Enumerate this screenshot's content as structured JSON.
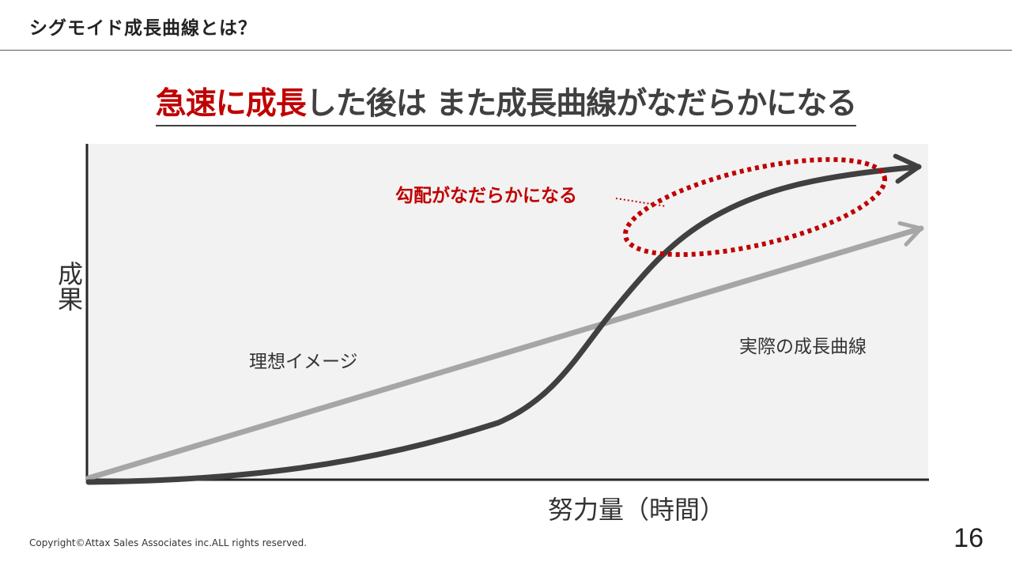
{
  "header": {
    "title": "シグモイド成長曲線とは？"
  },
  "headline": {
    "emphasis": "急速に成長",
    "rest": "した後は また成長曲線がなだらかになる"
  },
  "diagram": {
    "y_axis_label": "成果",
    "x_axis_label": "努力量（時間）",
    "ideal_line_label": "理想イメージ",
    "actual_curve_label": "実際の成長曲線",
    "callout_label": "勾配がなだらかになる",
    "colors": {
      "plot_background": "#f2f2f2",
      "axis": "#262626",
      "ideal_line": "#a6a6a6",
      "actual_curve": "#404040",
      "callout": "#c00000"
    }
  },
  "footer": {
    "copyright": "Copyright©Attax Sales Associates inc.ALL rights reserved.",
    "page_number": "16"
  }
}
